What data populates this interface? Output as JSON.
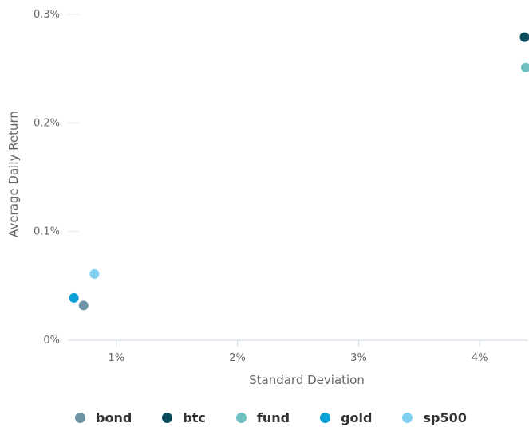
{
  "chart_data": {
    "type": "scatter",
    "title": "",
    "xlabel": "Standard Deviation",
    "ylabel": "Average Daily Return",
    "xlim": [
      0.6,
      4.4
    ],
    "ylim": [
      0,
      0.3
    ],
    "x_ticks": [
      1,
      2,
      3,
      4
    ],
    "x_tick_labels": [
      "1%",
      "2%",
      "3%",
      "4%"
    ],
    "y_ticks": [
      0,
      0.1,
      0.2,
      0.3
    ],
    "y_tick_labels": [
      "0%",
      "0.1%",
      "0.2%",
      "0.3%"
    ],
    "grid": false,
    "legend_position": "bottom",
    "series": [
      {
        "name": "bond",
        "color": "#6e95a6",
        "points": [
          {
            "x": 0.73,
            "y": 0.032
          }
        ]
      },
      {
        "name": "btc",
        "color": "#0b4c5c",
        "points": [
          {
            "x": 4.37,
            "y": 0.279
          }
        ]
      },
      {
        "name": "fund",
        "color": "#6fc0c0",
        "points": [
          {
            "x": 4.38,
            "y": 0.251
          }
        ]
      },
      {
        "name": "gold",
        "color": "#0aa0d8",
        "points": [
          {
            "x": 0.65,
            "y": 0.039
          }
        ]
      },
      {
        "name": "sp500",
        "color": "#7fd0f2",
        "points": [
          {
            "x": 0.82,
            "y": 0.061
          }
        ]
      }
    ]
  }
}
